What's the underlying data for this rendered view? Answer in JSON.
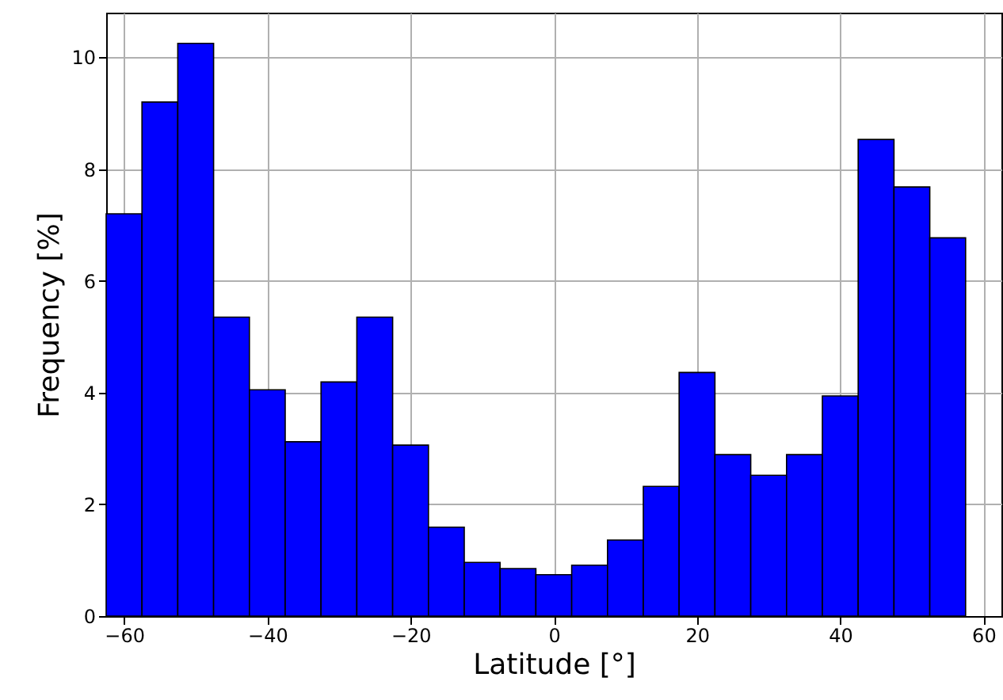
{
  "chart_data": {
    "type": "histogram",
    "xlabel": "Latitude [°]",
    "ylabel": "Frequency [%]",
    "bins": [
      -62.5,
      -57.5,
      -52.5,
      -47.5,
      -42.5,
      -37.5,
      -32.5,
      -27.5,
      -22.5,
      -17.5,
      -12.5,
      -7.5,
      -2.5,
      2.5,
      7.5,
      12.5,
      17.5,
      22.5,
      27.5,
      32.5,
      37.5,
      42.5,
      47.5,
      52.5,
      57.5
    ],
    "values": [
      7.2,
      9.2,
      10.25,
      5.35,
      4.05,
      3.12,
      4.19,
      5.35,
      3.06,
      1.59,
      0.96,
      0.85,
      0.74,
      0.91,
      1.36,
      2.32,
      4.36,
      2.89,
      2.52,
      2.89,
      3.94,
      8.53,
      7.68,
      6.77
    ],
    "color": "#0000ff",
    "xlim": [
      -62.5,
      62.5
    ],
    "ylim": [
      0,
      10.8
    ],
    "xticks": [
      {
        "value": -60,
        "label": "−60"
      },
      {
        "value": -40,
        "label": "−40"
      },
      {
        "value": -20,
        "label": "−20"
      },
      0,
      20,
      40,
      60
    ],
    "yticks": [
      0,
      2,
      4,
      6,
      8,
      10
    ],
    "grid": true
  }
}
